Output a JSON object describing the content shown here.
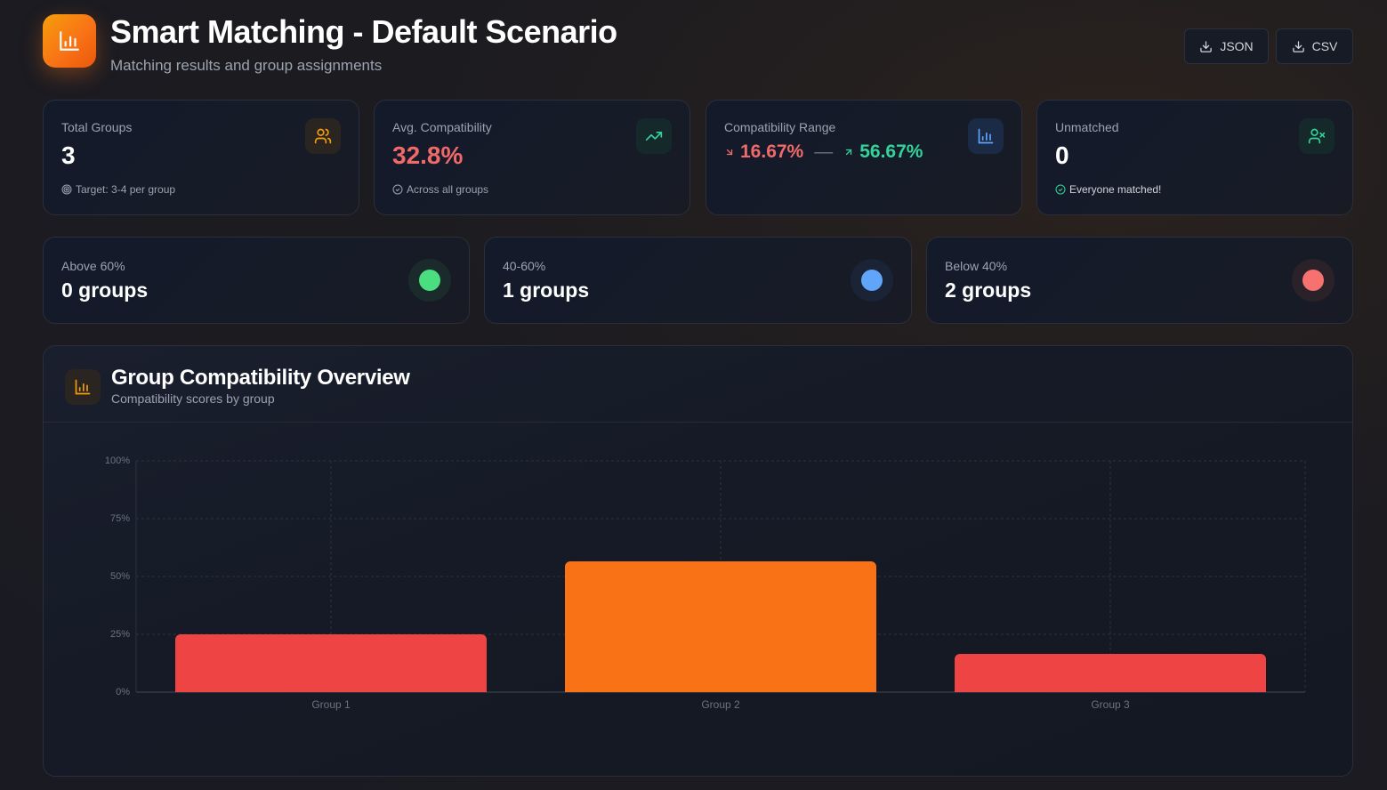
{
  "header": {
    "title": "Smart Matching - Default Scenario",
    "subtitle": "Matching results and group assignments",
    "buttons": [
      {
        "label": "JSON",
        "icon": "download-icon"
      },
      {
        "label": "CSV",
        "icon": "download-icon"
      }
    ]
  },
  "stats": {
    "total_groups": {
      "label": "Total Groups",
      "value": "3",
      "foot": "Target: 3-4 per group",
      "icon": "users-icon",
      "accent": "#f59e0b"
    },
    "avg_compat": {
      "label": "Avg. Compatibility",
      "value": "32.8%",
      "foot": "Across all groups",
      "icon": "trending-up-icon",
      "accent": "#f16a6a"
    },
    "range": {
      "label": "Compatibility Range",
      "min": "16.67%",
      "max": "56.67%",
      "sep": "—",
      "icon": "bar-chart-icon",
      "min_color": "#f16a6a",
      "max_color": "#34d399"
    },
    "unmatched": {
      "label": "Unmatched",
      "value": "0",
      "foot": "Everyone matched!",
      "icon": "user-x-icon",
      "accent": "#34d399"
    }
  },
  "bands": [
    {
      "label": "Above 60%",
      "value": "0 groups",
      "color": "#4ade80"
    },
    {
      "label": "40-60%",
      "value": "1 groups",
      "color": "#60a5fa"
    },
    {
      "label": "Below 40%",
      "value": "2 groups",
      "color": "#f87171"
    }
  ],
  "panel": {
    "title": "Group Compatibility Overview",
    "subtitle": "Compatibility scores by group"
  },
  "chart_data": {
    "type": "bar",
    "title": "Group Compatibility Overview",
    "subtitle": "Compatibility scores by group",
    "categories": [
      "Group 1",
      "Group 2",
      "Group 3"
    ],
    "values": [
      25.0,
      56.67,
      16.67
    ],
    "colors": [
      "#ef4444",
      "#f97316",
      "#ef4444"
    ],
    "xlabel": "",
    "ylabel": "",
    "ylim": [
      0,
      100
    ],
    "yticks": [
      "0%",
      "25%",
      "50%",
      "75%",
      "100%"
    ],
    "grid": true,
    "legend": false
  }
}
